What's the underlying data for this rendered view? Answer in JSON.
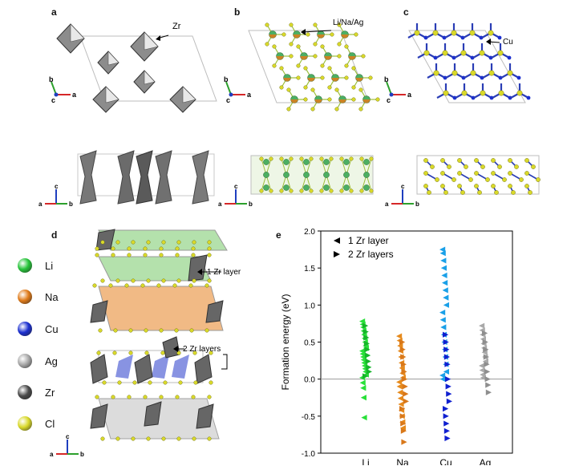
{
  "panels": {
    "a": {
      "letter": "a",
      "callout": "Zr"
    },
    "b": {
      "letter": "b",
      "callout": "Li/Na/Ag"
    },
    "c": {
      "letter": "c",
      "callout": "Cu"
    },
    "d": {
      "letter": "d",
      "callout_1": "1 Zr layer",
      "callout_2": "2 Zr layers"
    },
    "e": {
      "letter": "e"
    }
  },
  "axis_labels": {
    "a": "a",
    "b": "b",
    "c": "c"
  },
  "element_legend": [
    {
      "symbol": "Li",
      "color": "#27c43a"
    },
    {
      "symbol": "Na",
      "color": "#e07b1a"
    },
    {
      "symbol": "Cu",
      "color": "#1b2fd0"
    },
    {
      "symbol": "Ag",
      "color": "#a9a9a9"
    },
    {
      "symbol": "Zr",
      "color": "#4a4a4a"
    },
    {
      "symbol": "Cl",
      "color": "#d9d92a"
    }
  ],
  "chart_data": {
    "type": "scatter",
    "ylabel": "Formation energy (eV)",
    "xlabel": "",
    "categories": [
      "Li",
      "Na",
      "Cu",
      "Ag"
    ],
    "ylim": [
      -1.0,
      2.0
    ],
    "yticks": [
      "-1.0",
      "-0.5",
      "0.0",
      "0.5",
      "1.0",
      "1.5",
      "2.0"
    ],
    "reference_line": 0.0,
    "legend": {
      "placement": "top-left",
      "entries": [
        "1 Zr layer",
        "2 Zr layers"
      ]
    },
    "series": [
      {
        "name": "1 Zr layer",
        "marker": "left-triangle",
        "points": {
          "Li": [
            0.78,
            0.74,
            0.7,
            0.65,
            0.6,
            0.55,
            0.5,
            0.45,
            0.42,
            0.38,
            0.34,
            0.3,
            0.26,
            0.22,
            0.18,
            0.14,
            0.1,
            0.06,
            0.02,
            -0.05,
            -0.12,
            -0.25,
            -0.52
          ],
          "Na": [
            0.58,
            0.52,
            0.45,
            0.38,
            0.3,
            0.22,
            0.15,
            0.08,
            0.02,
            -0.04,
            -0.1,
            -0.18,
            -0.26,
            -0.34,
            -0.42,
            -0.5,
            -0.58,
            -0.66
          ],
          "Cu": [
            1.75,
            1.7,
            1.6,
            1.5,
            1.4,
            1.3,
            1.2,
            1.1,
            1.0,
            0.9,
            0.8,
            0.7,
            0.6,
            0.5,
            0.4,
            0.3,
            0.2,
            0.1,
            0.05,
            0.0
          ],
          "Ag": [
            0.72,
            0.66,
            0.6,
            0.54,
            0.48,
            0.42,
            0.36,
            0.3,
            0.24,
            0.18,
            0.12,
            0.06,
            0.02
          ]
        }
      },
      {
        "name": "2 Zr layers",
        "marker": "right-triangle",
        "points": {
          "Li": [
            0.72,
            0.64,
            0.56,
            0.48,
            0.4,
            0.32,
            0.24,
            0.16,
            0.1,
            0.04
          ],
          "Na": [
            0.5,
            0.4,
            0.3,
            0.2,
            0.1,
            0.0,
            -0.1,
            -0.2,
            -0.3,
            -0.4,
            -0.5,
            -0.6,
            -0.7,
            -0.85
          ],
          "Cu": [
            0.6,
            0.5,
            0.4,
            0.3,
            0.2,
            0.0,
            -0.1,
            -0.2,
            -0.3,
            -0.4,
            -0.5,
            -0.6,
            -0.7,
            -0.8
          ],
          "Ag": [
            0.62,
            0.5,
            0.4,
            0.3,
            0.2,
            0.1,
            0.0,
            -0.08,
            -0.18
          ]
        }
      }
    ]
  }
}
